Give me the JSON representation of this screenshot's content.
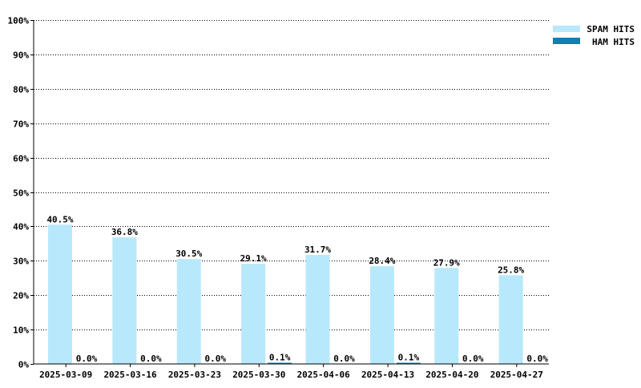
{
  "chart_data": {
    "type": "bar",
    "categories": [
      "2025-03-09",
      "2025-03-16",
      "2025-03-23",
      "2025-03-30",
      "2025-04-06",
      "2025-04-13",
      "2025-04-20",
      "2025-04-27"
    ],
    "series": [
      {
        "name": "SPAM HITS",
        "values": [
          40.5,
          36.8,
          30.5,
          29.1,
          31.7,
          28.4,
          27.9,
          25.8
        ],
        "labels": [
          "40.5%",
          "36.8%",
          "30.5%",
          "29.1%",
          "31.7%",
          "28.4%",
          "27.9%",
          "25.8%"
        ],
        "color": "#b8e8fb"
      },
      {
        "name": "HAM HITS",
        "values": [
          0.0,
          0.0,
          0.0,
          0.1,
          0.0,
          0.1,
          0.0,
          0.0
        ],
        "labels": [
          "0.0%",
          "0.0%",
          "0.0%",
          "0.1%",
          "0.0%",
          "0.1%",
          "0.0%",
          "0.0%"
        ],
        "color": "#0f7fb4"
      }
    ],
    "ylim": [
      0,
      100
    ],
    "yticks": [
      0,
      10,
      20,
      30,
      40,
      50,
      60,
      70,
      80,
      90,
      100
    ],
    "ytick_labels": [
      "0%",
      "10%",
      "20%",
      "30%",
      "40%",
      "50%",
      "60%",
      "70%",
      "80%",
      "90%",
      "100%"
    ],
    "grid": true,
    "legend": "top-right"
  }
}
